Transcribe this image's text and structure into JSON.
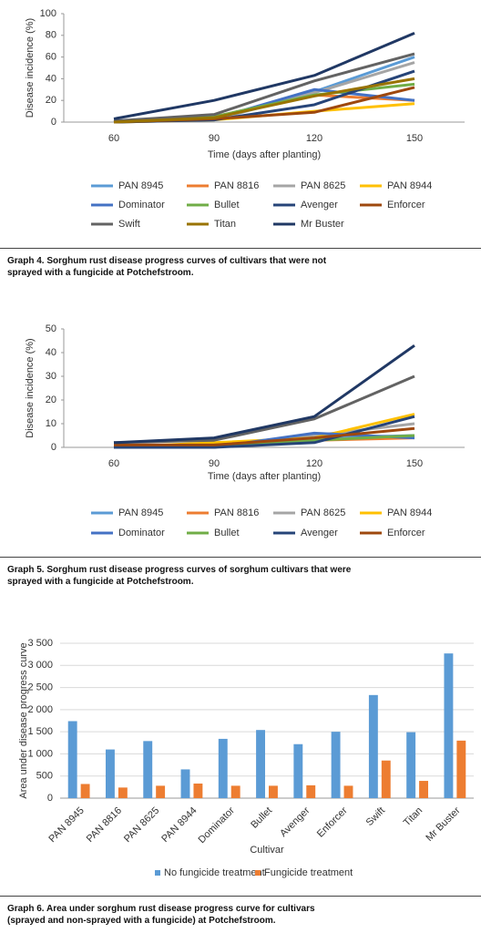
{
  "chart_data": [
    {
      "type": "line",
      "x_label": "Time (days after planting)",
      "y_label": "Disease incidence (%)",
      "caption": "Graph 4. Sorghum rust disease progress curves of cultivars that were not sprayed with a fungicide at Potchefstroom.",
      "categories": [
        "60",
        "90",
        "120",
        "150"
      ],
      "ylim": [
        0,
        100
      ],
      "yticks": [
        0,
        20,
        40,
        60,
        80,
        100
      ],
      "grid": false,
      "series": [
        {
          "name": "PAN 8945",
          "color": "#5b9bd5",
          "values": [
            0,
            3,
            28,
            60
          ]
        },
        {
          "name": "PAN 8816",
          "color": "#ed7d31",
          "values": [
            0,
            5,
            25,
            20
          ]
        },
        {
          "name": "PAN 8625",
          "color": "#a5a5a5",
          "values": [
            0,
            2,
            27,
            55
          ]
        },
        {
          "name": "PAN 8944",
          "color": "#ffc000",
          "values": [
            0,
            2,
            10,
            17
          ]
        },
        {
          "name": "Dominator",
          "color": "#4472c4",
          "values": [
            0,
            3,
            30,
            20
          ]
        },
        {
          "name": "Bullet",
          "color": "#70ad47",
          "values": [
            0,
            5,
            25,
            35
          ]
        },
        {
          "name": "Avenger",
          "color": "#264478",
          "values": [
            0,
            2,
            16,
            47
          ]
        },
        {
          "name": "Enforcer",
          "color": "#9e480e",
          "values": [
            0,
            3,
            9,
            32
          ]
        },
        {
          "name": "Swift",
          "color": "#636363",
          "values": [
            1,
            7,
            38,
            63
          ]
        },
        {
          "name": "Titan",
          "color": "#997300",
          "values": [
            0,
            4,
            24,
            40
          ]
        },
        {
          "name": "Mr Buster",
          "color": "#203864",
          "values": [
            3,
            20,
            43,
            82
          ]
        }
      ]
    },
    {
      "type": "line",
      "x_label": "Time (days after planting)",
      "y_label": "Disease incidence (%)",
      "caption": "Graph 5. Sorghum rust disease progress curves of sorghum cultivars that were sprayed with a fungicide at Potchefstroom.",
      "categories": [
        "60",
        "90",
        "120",
        "150"
      ],
      "ylim": [
        0,
        50
      ],
      "yticks": [
        0,
        10,
        20,
        30,
        40,
        50
      ],
      "grid": false,
      "series": [
        {
          "name": "PAN 8945",
          "color": "#5b9bd5",
          "values": [
            1,
            1,
            4,
            5
          ]
        },
        {
          "name": "PAN 8816",
          "color": "#ed7d31",
          "values": [
            1,
            1,
            3,
            4
          ]
        },
        {
          "name": "PAN 8625",
          "color": "#a5a5a5",
          "values": [
            0,
            1,
            5,
            10
          ]
        },
        {
          "name": "PAN 8944",
          "color": "#ffc000",
          "values": [
            0,
            2,
            4,
            14
          ]
        },
        {
          "name": "Dominator",
          "color": "#4472c4",
          "values": [
            1,
            0,
            6,
            4
          ]
        },
        {
          "name": "Bullet",
          "color": "#70ad47",
          "values": [
            0,
            1,
            3,
            5
          ]
        },
        {
          "name": "Avenger",
          "color": "#264478",
          "values": [
            0,
            0,
            2,
            13
          ]
        },
        {
          "name": "Enforcer",
          "color": "#9e480e",
          "values": [
            1,
            1,
            4,
            8
          ]
        },
        {
          "color": "#636363",
          "values": [
            2,
            3,
            12,
            30
          ]
        },
        {
          "color": "#203864",
          "values": [
            2,
            4,
            13,
            43
          ]
        }
      ]
    },
    {
      "type": "bar",
      "x_label": "Cultivar",
      "y_label": "Area under disease progress curve",
      "caption": "Graph 6. Area under sorghum rust disease progress curve for cultivars (sprayed and non-sprayed with a fungicide) at Potchefstroom.",
      "categories": [
        "PAN 8945",
        "PAN 8816",
        "PAN 8625",
        "PAN 8944",
        "Dominator",
        "Bullet",
        "Avenger",
        "Enforcer",
        "Swift",
        "Titan",
        "Mr Buster"
      ],
      "ylim": [
        0,
        3500
      ],
      "yticks": [
        0,
        500,
        {
          "value": 1000,
          "label": "1 000"
        },
        {
          "value": 1500,
          "label": "1 500"
        },
        {
          "value": 2000,
          "label": "2 000"
        },
        {
          "value": 2500,
          "label": "2 500"
        },
        {
          "value": 3000,
          "label": "3 000"
        },
        {
          "value": 3500,
          "label": "3 500"
        }
      ],
      "grid": true,
      "series": [
        {
          "name": "No fungicide treatment",
          "color": "#5b9bd5",
          "values": [
            1740,
            1100,
            1290,
            650,
            1340,
            1540,
            1220,
            1500,
            2330,
            1490,
            3270
          ]
        },
        {
          "name": "Fungicide treatment",
          "color": "#ed7d31",
          "values": [
            320,
            240,
            280,
            330,
            280,
            280,
            290,
            280,
            850,
            390,
            1300
          ]
        }
      ]
    }
  ]
}
